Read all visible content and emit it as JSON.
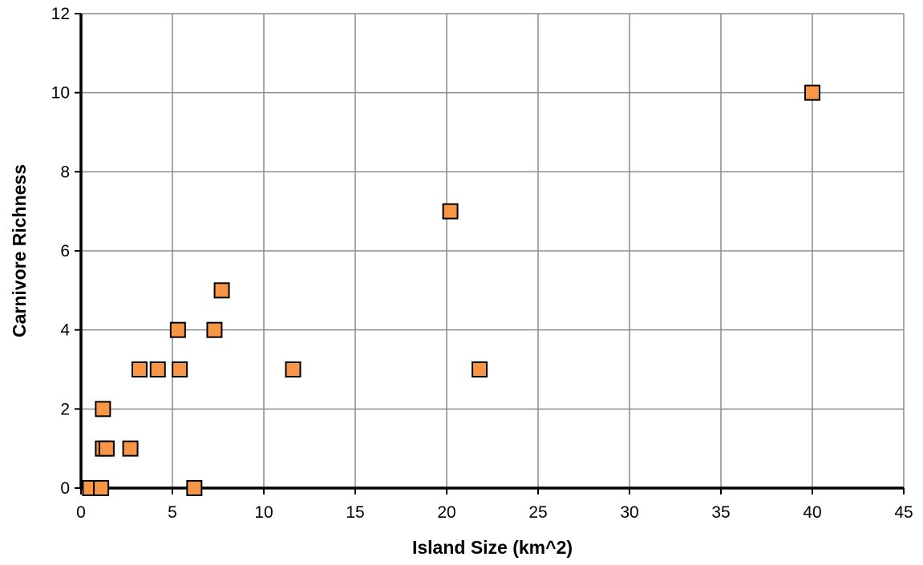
{
  "chart_data": {
    "type": "scatter",
    "title": "",
    "xlabel": "Island Size (km^2)",
    "ylabel": "Carnivore Richness",
    "xlim": [
      0,
      45
    ],
    "ylim": [
      0,
      12
    ],
    "x_ticks": [
      0,
      5,
      10,
      15,
      20,
      25,
      30,
      35,
      40,
      45
    ],
    "y_ticks": [
      0,
      2,
      4,
      6,
      8,
      10,
      12
    ],
    "grid": true,
    "legend": "none",
    "marker": "square",
    "marker_color": "#F79646",
    "points": [
      {
        "x": 0.5,
        "y": 0
      },
      {
        "x": 1.1,
        "y": 0
      },
      {
        "x": 6.2,
        "y": 0
      },
      {
        "x": 1.2,
        "y": 1
      },
      {
        "x": 1.4,
        "y": 1
      },
      {
        "x": 2.7,
        "y": 1
      },
      {
        "x": 1.2,
        "y": 2
      },
      {
        "x": 3.2,
        "y": 3
      },
      {
        "x": 4.2,
        "y": 3
      },
      {
        "x": 5.4,
        "y": 3
      },
      {
        "x": 11.6,
        "y": 3
      },
      {
        "x": 21.8,
        "y": 3
      },
      {
        "x": 5.3,
        "y": 4
      },
      {
        "x": 7.3,
        "y": 4
      },
      {
        "x": 7.7,
        "y": 5
      },
      {
        "x": 20.2,
        "y": 7
      },
      {
        "x": 40.0,
        "y": 10
      }
    ]
  }
}
